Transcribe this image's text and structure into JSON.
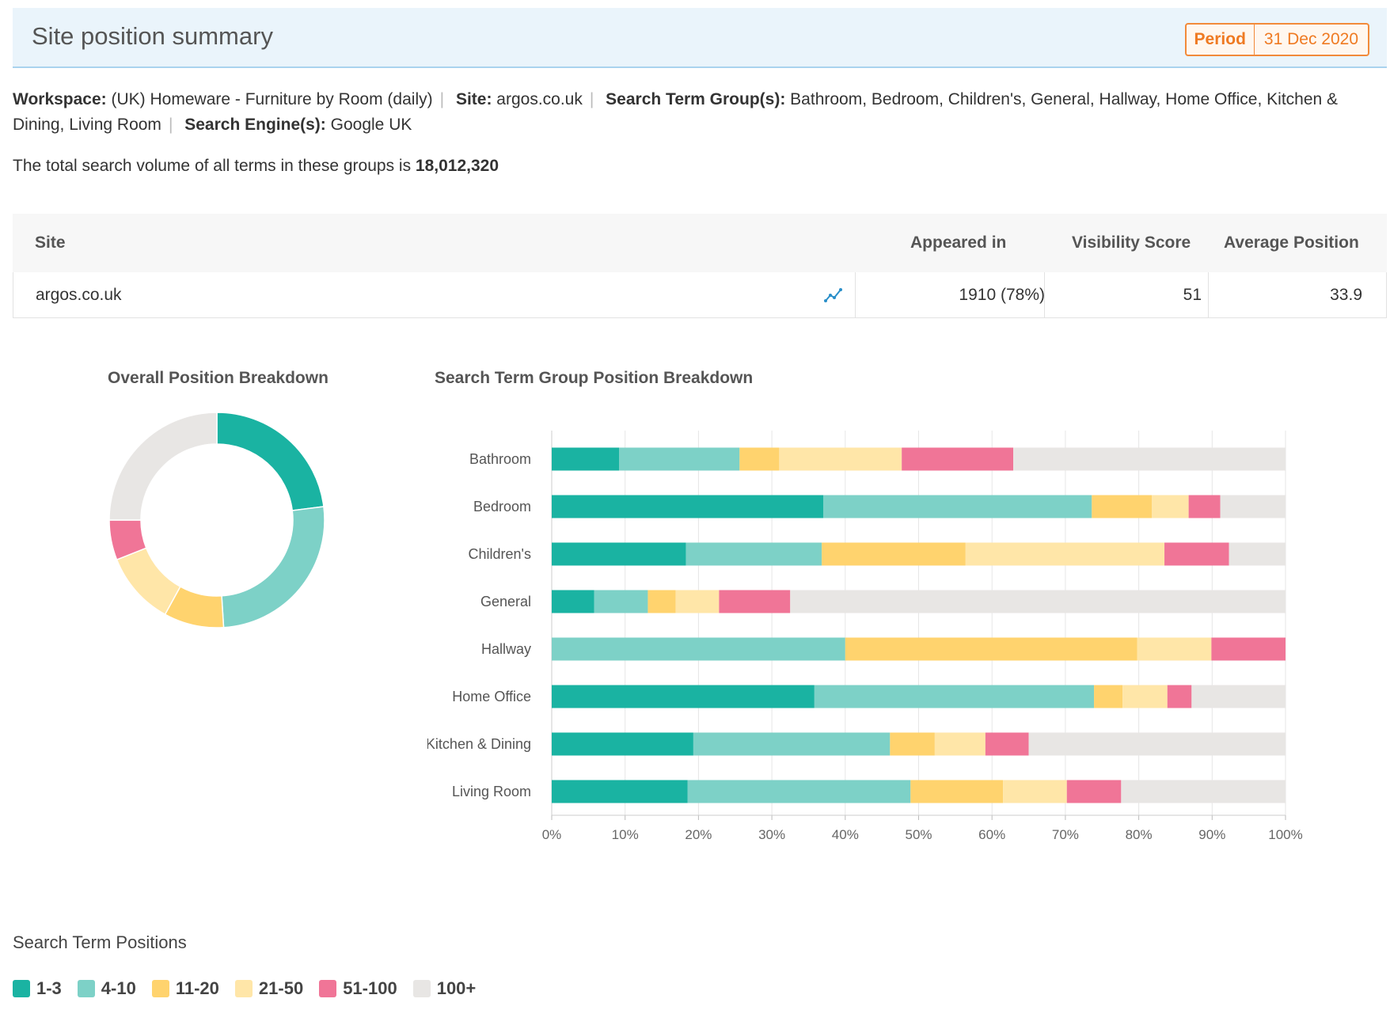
{
  "header": {
    "title": "Site position summary",
    "period_label": "Period",
    "period_value": "31 Dec 2020"
  },
  "meta": {
    "workspace_label": "Workspace:",
    "workspace_value": "(UK) Homeware - Furniture by Room (daily)",
    "site_label": "Site:",
    "site_value": "argos.co.uk",
    "groups_label": "Search Term Group(s):",
    "groups_value": "Bathroom, Bedroom, Children's, General, Hallway, Home Office, Kitchen & Dining, Living Room",
    "engines_label": "Search Engine(s):",
    "engines_value": "Google UK"
  },
  "volume": {
    "text": "The total search volume of all terms in these groups is",
    "value": "18,012,320"
  },
  "table": {
    "headers": {
      "site": "Site",
      "appeared": "Appeared in",
      "visibility": "Visibility Score",
      "avg_position": "Average Position"
    },
    "row": {
      "site": "argos.co.uk",
      "appeared": "1910 (78%)",
      "visibility": "51",
      "avg_position": "33.9"
    }
  },
  "charts": {
    "donut_title": "Overall Position Breakdown",
    "bar_title": "Search Term Group Position Breakdown"
  },
  "colors": {
    "1-3": "#1ab3a2",
    "4-10": "#7dd1c7",
    "11-20": "#ffd36e",
    "21-50": "#ffe6a8",
    "51-100": "#f07597",
    "100+": "#e8e6e4"
  },
  "legend": {
    "title": "Search Term Positions",
    "items": [
      "1-3",
      "4-10",
      "11-20",
      "21-50",
      "51-100",
      "100+"
    ]
  },
  "chart_data": [
    {
      "type": "pie",
      "title": "Overall Position Breakdown",
      "categories": [
        "1-3",
        "4-10",
        "11-20",
        "21-50",
        "51-100",
        "100+"
      ],
      "values": [
        23,
        26,
        9,
        11,
        6,
        25
      ]
    },
    {
      "type": "bar",
      "orientation": "horizontal",
      "stacked": true,
      "title": "Search Term Group Position Breakdown",
      "categories": [
        "Bathroom",
        "Bedroom",
        "Children's",
        "General",
        "Hallway",
        "Home Office",
        "Kitchen & Dining",
        "Living Room"
      ],
      "xlim": [
        0,
        100
      ],
      "ticks": [
        "0%",
        "10%",
        "20%",
        "30%",
        "40%",
        "50%",
        "60%",
        "70%",
        "80%",
        "90%",
        "100%"
      ],
      "series": [
        {
          "name": "1-3",
          "values": [
            9.2,
            37,
            18.3,
            5.8,
            0,
            35.8,
            19.3,
            18.5
          ]
        },
        {
          "name": "4-10",
          "values": [
            16.4,
            36.6,
            18.5,
            7.3,
            40,
            38.1,
            26.8,
            30.4
          ]
        },
        {
          "name": "11-20",
          "values": [
            5.4,
            8.2,
            19.6,
            3.8,
            39.8,
            3.9,
            6.1,
            12.6
          ]
        },
        {
          "name": "21-50",
          "values": [
            16.7,
            5,
            27.1,
            5.9,
            10.1,
            6.1,
            6.9,
            8.7
          ]
        },
        {
          "name": "51-100",
          "values": [
            15.2,
            4.3,
            8.8,
            9.7,
            10.1,
            3.3,
            5.9,
            7.4
          ]
        },
        {
          "name": "100+",
          "values": [
            37.1,
            8.9,
            7.7,
            67.5,
            0,
            12.8,
            35,
            22.4
          ]
        }
      ]
    }
  ]
}
